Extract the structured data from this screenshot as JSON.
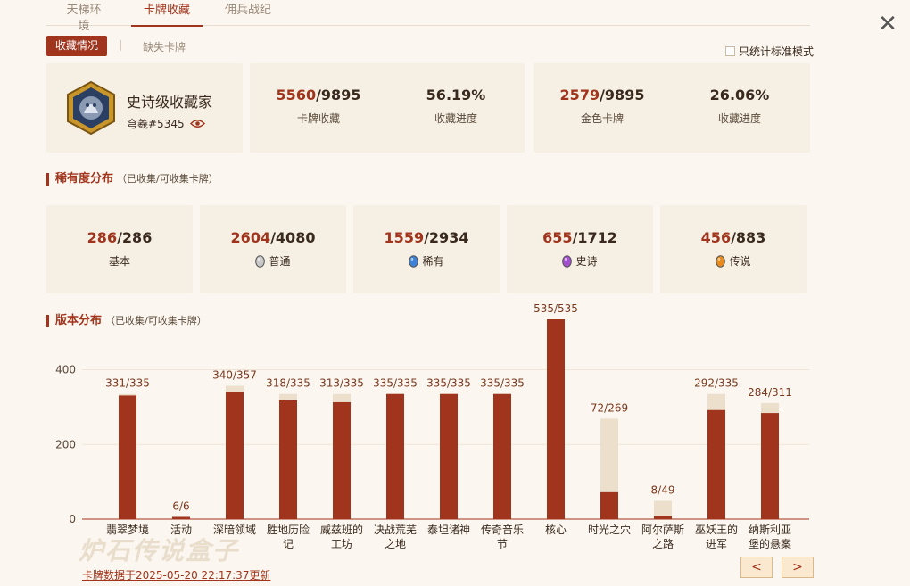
{
  "top_tabs": [
    {
      "label": "天梯环境",
      "active": false
    },
    {
      "label": "卡牌收藏",
      "active": true
    },
    {
      "label": "佣兵战纪",
      "active": false
    }
  ],
  "close_glyph": "✕",
  "sub_tabs": {
    "active": "收藏情况",
    "inactive": "缺失卡牌"
  },
  "standard_toggle": {
    "label": "只统计标准模式",
    "checked": false
  },
  "profile": {
    "title": "史诗级收藏家",
    "player_id": "穹羲#5345",
    "icon": "eye-icon"
  },
  "stats": [
    {
      "value_hl": "5560",
      "value_rest": "/9895",
      "label": "卡牌收藏"
    },
    {
      "value_hl": "",
      "value_rest": "56.19%",
      "label": "收藏进度"
    },
    {
      "value_hl": "2579",
      "value_rest": "/9895",
      "label": "金色卡牌"
    },
    {
      "value_hl": "",
      "value_rest": "26.06%",
      "label": "收藏进度"
    }
  ],
  "rarity_section": {
    "title": "稀有度分布",
    "note": "（已收集/可收集卡牌）"
  },
  "rarity": [
    {
      "owned": "286",
      "total": "/286",
      "label": "基本",
      "gem": "",
      "gem_color": ""
    },
    {
      "owned": "2604",
      "total": "/4080",
      "label": "普通",
      "gem": "common-gem-icon",
      "gem_color": "#c9c9c9"
    },
    {
      "owned": "1559",
      "total": "/2934",
      "label": "稀有",
      "gem": "rare-gem-icon",
      "gem_color": "#3d82d6"
    },
    {
      "owned": "655",
      "total": "/1712",
      "label": "史诗",
      "gem": "epic-gem-icon",
      "gem_color": "#a54fd1"
    },
    {
      "owned": "456",
      "total": "/883",
      "label": "传说",
      "gem": "legendary-gem-icon",
      "gem_color": "#e98a1c"
    }
  ],
  "expansion_section": {
    "title": "版本分布",
    "note": "（已收集/可收集卡牌）"
  },
  "chart_data": {
    "type": "bar",
    "categories": [
      "翡翠梦境",
      "活动",
      "深暗领域",
      "胜地历险记",
      "威兹班的工坊",
      "决战荒芜之地",
      "泰坦诸神",
      "传奇音乐节",
      "核心",
      "时光之穴",
      "阿尔萨斯之路",
      "巫妖王的进军",
      "纳斯利亚堡的悬案"
    ],
    "category_lines": [
      [
        "翡翠梦境"
      ],
      [
        "活动"
      ],
      [
        "深暗领域"
      ],
      [
        "胜地历险",
        "记"
      ],
      [
        "威兹班的",
        "工坊"
      ],
      [
        "决战荒芜",
        "之地"
      ],
      [
        "泰坦诸神"
      ],
      [
        "传奇音乐",
        "节"
      ],
      [
        "核心"
      ],
      [
        "时光之穴"
      ],
      [
        "阿尔萨斯",
        "之路"
      ],
      [
        "巫妖王的",
        "进军"
      ],
      [
        "纳斯利亚",
        "堡的悬案"
      ]
    ],
    "series": [
      {
        "name": "已收集",
        "values": [
          331,
          6,
          340,
          318,
          313,
          335,
          335,
          335,
          535,
          72,
          8,
          292,
          284
        ]
      },
      {
        "name": "可收集",
        "values": [
          335,
          6,
          357,
          335,
          335,
          335,
          335,
          335,
          535,
          269,
          49,
          335,
          311
        ]
      }
    ],
    "data_labels": [
      "331/335",
      "6/6",
      "340/357",
      "318/335",
      "313/335",
      "335/335",
      "335/335",
      "335/335",
      "535/535",
      "72/269",
      "8/49",
      "292/335",
      "284/311"
    ],
    "y_ticks": [
      "0",
      "200",
      "400"
    ],
    "ylim": [
      0,
      535
    ],
    "colors": {
      "owned": "#a0341c",
      "total": "#ece0cc"
    }
  },
  "footer": {
    "note": "卡牌数据于2025-05-20 22:17:37更新",
    "watermark": "炉石传说盒子"
  },
  "pager": {
    "prev": "<",
    "next": ">"
  }
}
